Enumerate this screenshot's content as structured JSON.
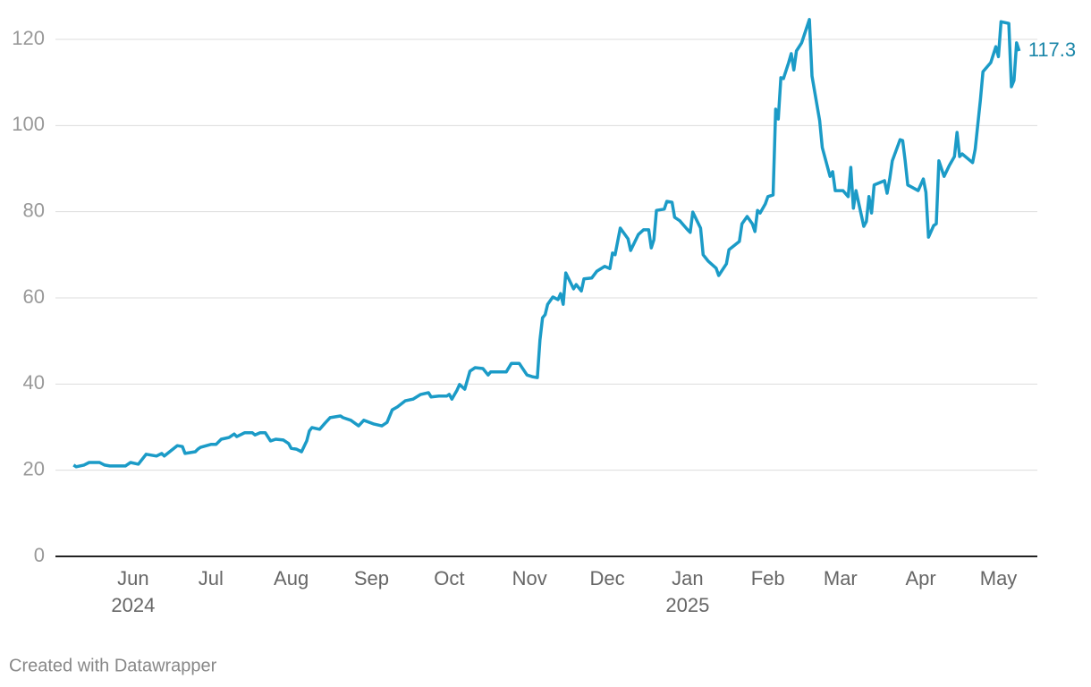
{
  "chart_data": {
    "type": "line",
    "x": [
      0,
      1,
      4,
      6,
      10,
      12,
      14,
      20,
      22,
      25,
      28,
      32,
      34,
      35,
      40,
      42,
      43,
      47,
      48,
      49,
      53,
      55,
      57,
      60,
      62,
      63,
      66,
      69,
      70,
      72,
      74,
      76,
      78,
      81,
      83,
      84,
      86,
      88,
      90,
      91,
      92,
      95,
      97,
      99,
      103,
      104,
      107,
      110,
      112,
      116,
      119,
      121,
      123,
      125,
      128,
      131,
      134,
      137,
      138,
      141,
      144,
      145,
      146,
      148,
      149,
      151,
      153,
      155,
      158,
      160,
      161,
      167,
      169,
      172,
      175,
      177,
      179,
      180,
      181,
      182,
      183,
      185,
      187,
      188,
      189,
      190,
      193,
      194,
      196,
      197,
      200,
      202,
      205,
      207,
      208,
      209,
      211,
      214,
      215,
      218,
      220,
      222,
      223,
      224,
      225,
      228,
      229,
      231,
      232,
      234,
      237,
      238,
      239,
      242,
      243,
      245,
      248,
      249,
      252,
      253,
      257,
      258,
      260,
      262,
      263,
      264,
      265,
      267,
      268,
      270,
      271,
      272,
      273,
      274,
      276,
      277,
      278,
      279,
      281,
      284,
      285,
      288,
      289,
      292,
      293,
      294,
      297,
      299,
      300,
      301,
      302,
      305,
      306,
      307,
      308,
      309,
      313,
      314,
      315,
      316,
      319,
      320,
      321,
      322,
      326,
      328,
      329,
      330,
      332,
      333,
      334,
      336,
      338,
      340,
      341,
      342,
      343,
      347,
      348,
      350,
      351,
      354,
      356,
      357,
      358,
      361,
      362,
      363,
      364,
      365
    ],
    "series": [
      {
        "color": "#1b9bc7",
        "values": [
          21.2,
          20.8,
          21.2,
          21.8,
          21.8,
          21.2,
          21.0,
          21.0,
          21.8,
          21.4,
          23.7,
          23.3,
          23.9,
          23.3,
          25.7,
          25.5,
          23.9,
          24.3,
          24.9,
          25.3,
          26.0,
          26.0,
          27.2,
          27.6,
          28.4,
          27.8,
          28.7,
          28.7,
          28.2,
          28.7,
          28.7,
          26.8,
          27.2,
          27.0,
          26.2,
          25.1,
          24.9,
          24.3,
          26.8,
          29.1,
          29.9,
          29.5,
          30.9,
          32.2,
          32.6,
          32.2,
          31.6,
          30.3,
          31.6,
          30.7,
          30.3,
          31.1,
          34.0,
          34.7,
          36.1,
          36.5,
          37.6,
          38.0,
          37.0,
          37.2,
          37.2,
          37.6,
          36.5,
          38.6,
          39.9,
          38.8,
          43.0,
          43.8,
          43.6,
          42.1,
          42.8,
          42.8,
          44.8,
          44.8,
          42.1,
          41.7,
          41.5,
          50.2,
          55.4,
          56.1,
          58.5,
          60.2,
          59.6,
          61.0,
          58.5,
          65.8,
          62.1,
          63.1,
          61.6,
          64.4,
          64.6,
          66.2,
          67.3,
          66.8,
          70.4,
          70.0,
          76.2,
          73.7,
          71.0,
          74.7,
          75.8,
          75.8,
          71.6,
          73.5,
          80.3,
          80.6,
          82.4,
          82.2,
          78.7,
          77.9,
          75.8,
          75.2,
          79.9,
          76.2,
          70.0,
          68.5,
          66.9,
          65.2,
          67.9,
          71.2,
          73.1,
          77.2,
          78.9,
          77.2,
          75.4,
          80.3,
          79.7,
          81.8,
          83.5,
          83.9,
          103.8,
          101.5,
          111.1,
          110.9,
          114.6,
          116.7,
          112.9,
          117.3,
          119.2,
          124.6,
          111.5,
          101.1,
          94.9,
          88.2,
          89.3,
          84.9,
          84.9,
          83.5,
          90.3,
          80.8,
          84.9,
          76.6,
          77.7,
          83.5,
          79.7,
          86.2,
          87.2,
          84.3,
          87.6,
          91.8,
          96.7,
          96.5,
          91.8,
          86.2,
          84.9,
          87.6,
          84.5,
          74.1,
          76.8,
          77.2,
          91.8,
          88.2,
          90.7,
          92.8,
          98.4,
          92.8,
          93.4,
          91.4,
          94.5,
          105.9,
          112.5,
          114.6,
          118.3,
          116.0,
          124.1,
          123.7,
          109.0,
          110.5,
          119.2,
          117.3
        ]
      }
    ],
    "value_label_color": "#1a86a8",
    "xlim": [
      -7,
      372
    ],
    "xticks": [
      {
        "value": 23,
        "label": "Jun"
      },
      {
        "value": 53,
        "label": "Jul"
      },
      {
        "value": 84,
        "label": "Aug"
      },
      {
        "value": 115,
        "label": "Sep"
      },
      {
        "value": 145,
        "label": "Oct"
      },
      {
        "value": 176,
        "label": "Nov"
      },
      {
        "value": 206,
        "label": "Dec"
      },
      {
        "value": 237,
        "label": "Jan"
      },
      {
        "value": 268,
        "label": "Feb"
      },
      {
        "value": 296,
        "label": "Mar"
      },
      {
        "value": 327,
        "label": "Apr"
      },
      {
        "value": 357,
        "label": "May"
      }
    ],
    "x_year_labels": [
      {
        "value": 23,
        "label": "2024"
      },
      {
        "value": 237,
        "label": "2025"
      }
    ],
    "ylim": [
      0,
      120
    ],
    "yticks": [
      0,
      20,
      40,
      60,
      80,
      100,
      120
    ],
    "grid": true,
    "credit": "Created with Datawrapper"
  }
}
